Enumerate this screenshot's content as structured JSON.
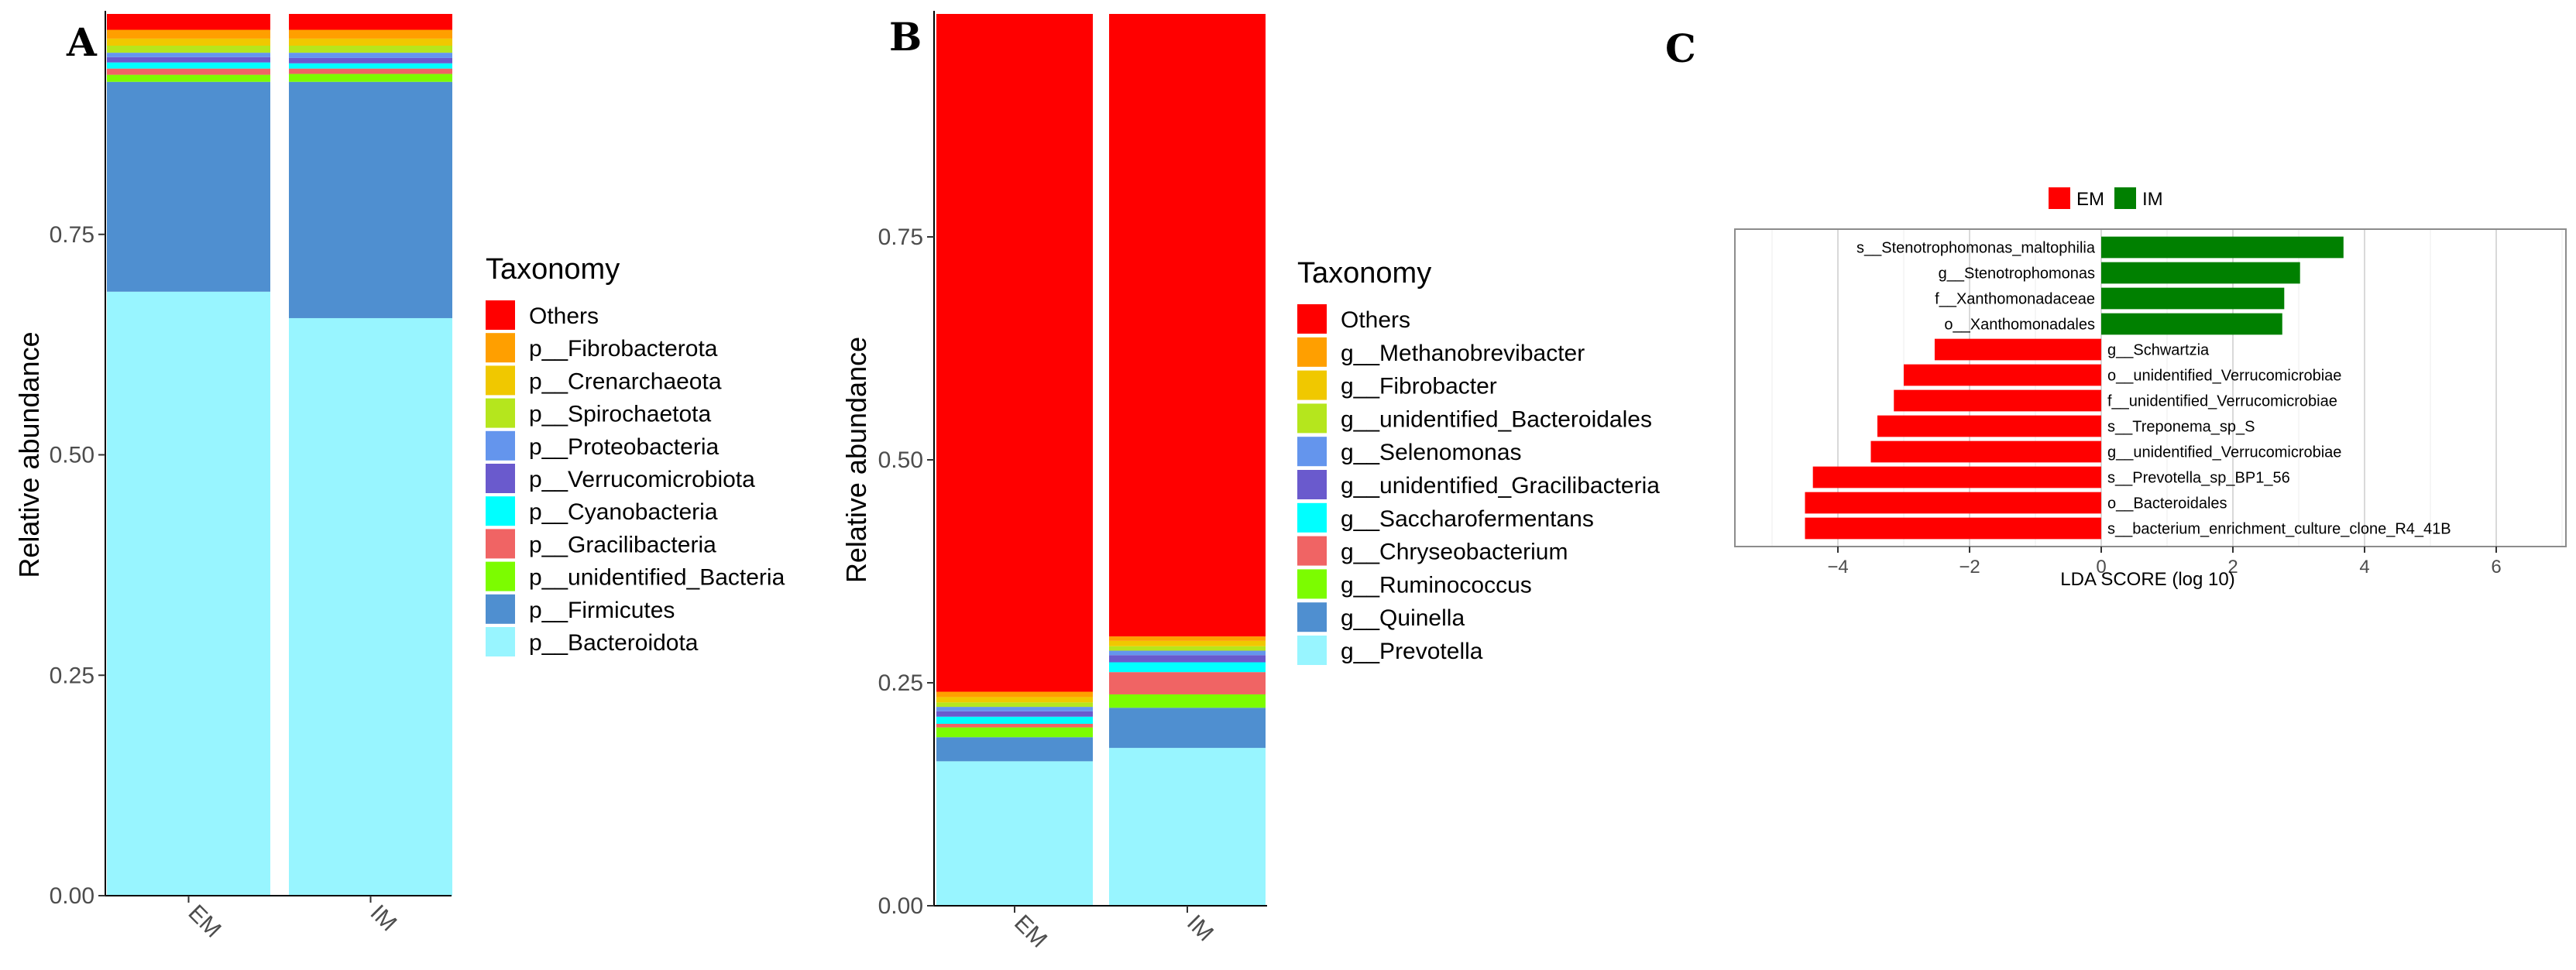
{
  "panels": {
    "a": "A",
    "b": "B",
    "c": "C"
  },
  "colors": {
    "others": "#ff0000",
    "c1": "#ff9f00",
    "c2": "#f0c800",
    "c3": "#b5e61d",
    "c4": "#6495ed",
    "c5": "#6a5acd",
    "c6": "#00ffff",
    "c7": "#f06464",
    "c8": "#7cfc00",
    "c9": "#4f8fd0",
    "c10": "#98f5ff",
    "em": "#ff0000",
    "im": "#008000"
  },
  "chart_data": [
    {
      "id": "A",
      "type": "bar",
      "stacked": true,
      "ylabel": "Relative abundance",
      "ylim": [
        0,
        1
      ],
      "yticks": [
        "0.00",
        "0.25",
        "0.50",
        "0.75"
      ],
      "categories": [
        "EM",
        "IM"
      ],
      "legend_title": "Taxonomy",
      "series": [
        {
          "name": "p__Bacteroidota",
          "color": "#98f5ff",
          "values": [
            0.685,
            0.655
          ]
        },
        {
          "name": "p__Firmicutes",
          "color": "#4f8fd0",
          "values": [
            0.238,
            0.268
          ]
        },
        {
          "name": "p__unidentified_Bacteria",
          "color": "#7cfc00",
          "values": [
            0.008,
            0.009
          ]
        },
        {
          "name": "p__Gracilibacteria",
          "color": "#f06464",
          "values": [
            0.007,
            0.006
          ]
        },
        {
          "name": "p__Cyanobacteria",
          "color": "#00ffff",
          "values": [
            0.007,
            0.006
          ]
        },
        {
          "name": "p__Verrucomicrobiota",
          "color": "#6a5acd",
          "values": [
            0.006,
            0.006
          ]
        },
        {
          "name": "p__Proteobacteria",
          "color": "#6495ed",
          "values": [
            0.005,
            0.006
          ]
        },
        {
          "name": "p__Spirochaetota",
          "color": "#b5e61d",
          "values": [
            0.008,
            0.008
          ]
        },
        {
          "name": "p__Crenarchaeota",
          "color": "#f0c800",
          "values": [
            0.008,
            0.008
          ]
        },
        {
          "name": "p__Fibrobacterota",
          "color": "#ff9f00",
          "values": [
            0.01,
            0.01
          ]
        },
        {
          "name": "Others",
          "color": "#ff0000",
          "values": [
            0.018,
            0.018
          ]
        }
      ]
    },
    {
      "id": "B",
      "type": "bar",
      "stacked": true,
      "ylabel": "Relative abundance",
      "ylim": [
        0,
        1
      ],
      "yticks": [
        "0.00",
        "0.25",
        "0.50",
        "0.75"
      ],
      "categories": [
        "EM",
        "IM"
      ],
      "legend_title": "Taxonomy",
      "series": [
        {
          "name": "g__Prevotella",
          "color": "#98f5ff",
          "values": [
            0.162,
            0.177
          ]
        },
        {
          "name": "g__Quinella",
          "color": "#4f8fd0",
          "values": [
            0.027,
            0.045
          ]
        },
        {
          "name": "g__Ruminococcus",
          "color": "#7cfc00",
          "values": [
            0.011,
            0.015
          ]
        },
        {
          "name": "g__Chryseobacterium",
          "color": "#f06464",
          "values": [
            0.004,
            0.025
          ]
        },
        {
          "name": "g__Saccharofermentans",
          "color": "#00ffff",
          "values": [
            0.008,
            0.011
          ]
        },
        {
          "name": "g__unidentified_Gracilibacteria",
          "color": "#6a5acd",
          "values": [
            0.006,
            0.008
          ]
        },
        {
          "name": "g__Selenomonas",
          "color": "#6495ed",
          "values": [
            0.005,
            0.005
          ]
        },
        {
          "name": "g__unidentified_Bacteroidales",
          "color": "#b5e61d",
          "values": [
            0.005,
            0.005
          ]
        },
        {
          "name": "g__Fibrobacter",
          "color": "#f0c800",
          "values": [
            0.006,
            0.006
          ]
        },
        {
          "name": "g__Methanobrevibacter",
          "color": "#ff9f00",
          "values": [
            0.006,
            0.005
          ]
        },
        {
          "name": "Others",
          "color": "#ff0000",
          "values": [
            0.76,
            0.698
          ]
        }
      ]
    },
    {
      "id": "C",
      "type": "bar",
      "orientation": "horizontal",
      "xlabel": "LDA SCORE (log 10)",
      "xlim": [
        -5.3,
        7.0
      ],
      "xticks": [
        -4,
        -2,
        0,
        2,
        4,
        6
      ],
      "legend": [
        {
          "name": "EM",
          "color": "#ff0000"
        },
        {
          "name": "IM",
          "color": "#008000"
        }
      ],
      "bars": [
        {
          "label": "s__Stenotrophomonas_maltophilia",
          "value": 3.68,
          "group": "IM"
        },
        {
          "label": "g__Stenotrophomonas",
          "value": 3.02,
          "group": "IM"
        },
        {
          "label": "f__Xanthomonadaceae",
          "value": 2.78,
          "group": "IM"
        },
        {
          "label": "o__Xanthomonadales",
          "value": 2.75,
          "group": "IM"
        },
        {
          "label": "g__Schwartzia",
          "value": -2.53,
          "group": "EM"
        },
        {
          "label": "o__unidentified_Verrucomicrobiae",
          "value": -3.0,
          "group": "EM"
        },
        {
          "label": "f__unidentified_Verrucomicrobiae",
          "value": -3.15,
          "group": "EM"
        },
        {
          "label": "s__Treponema_sp_S",
          "value": -3.4,
          "group": "EM"
        },
        {
          "label": "g__unidentified_Verrucomicrobiae",
          "value": -3.5,
          "group": "EM"
        },
        {
          "label": "s__Prevotella_sp_BP1_56",
          "value": -4.38,
          "group": "EM"
        },
        {
          "label": "o__Bacteroidales",
          "value": -4.5,
          "group": "EM"
        },
        {
          "label": "s__bacterium_enrichment_culture_clone_R4_41B",
          "value": -4.5,
          "group": "EM"
        }
      ]
    }
  ]
}
